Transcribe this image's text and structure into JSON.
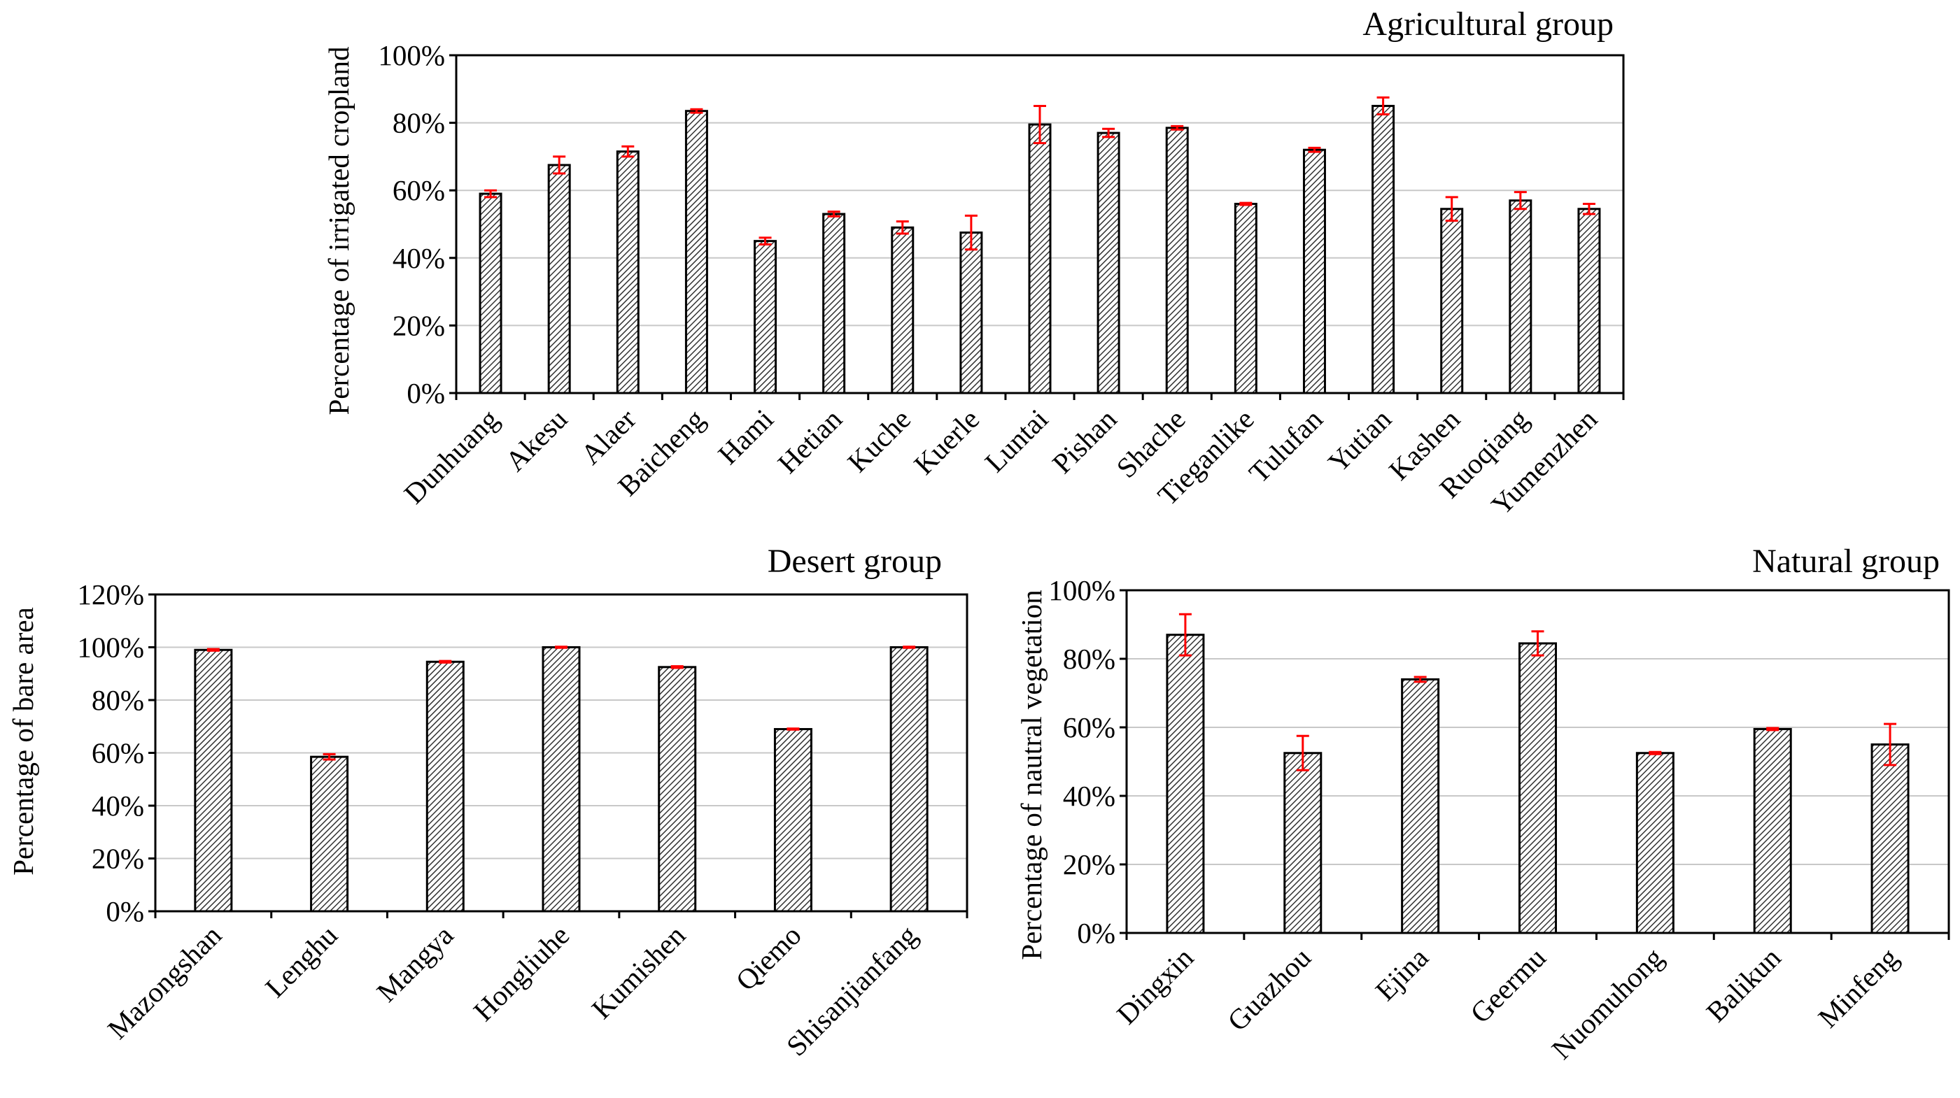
{
  "chart_data": [
    {
      "id": "agri",
      "type": "bar",
      "title": "Agricultural  group",
      "ylabel": "Percentage of irrigated cropland",
      "xlabel": "",
      "ylim": [
        0,
        100
      ],
      "yticks": [
        "0%",
        "20%",
        "40%",
        "60%",
        "80%",
        "100%"
      ],
      "categories": [
        "Dunhuang",
        "Akesu",
        "Alaer",
        "Baicheng",
        "Hami",
        "Hetian",
        "Kuche",
        "Kuerle",
        "Luntai",
        "Pishan",
        "Shache",
        "Tieganlike",
        "Tulufan",
        "Yutian",
        "Kashen",
        "Ruoqiang",
        "Yumenzhen"
      ],
      "values": [
        59,
        67.5,
        71.5,
        83.5,
        45,
        53,
        49,
        47.5,
        79.5,
        77,
        78.5,
        56,
        72,
        85,
        54.5,
        57,
        54.5
      ],
      "errors": [
        1,
        2.5,
        1.5,
        0.5,
        1,
        0.7,
        1.8,
        5,
        5.5,
        1.2,
        0.5,
        0.3,
        0.6,
        2.5,
        3.5,
        2.5,
        1.5
      ],
      "grid": true
    },
    {
      "id": "desert",
      "type": "bar",
      "title": "Desert group",
      "ylabel": "Percentage of bare area",
      "xlabel": "",
      "ylim": [
        0,
        120
      ],
      "yticks": [
        "0%",
        "20%",
        "40%",
        "60%",
        "80%",
        "100%",
        "120%"
      ],
      "categories": [
        "Mazongshan",
        "Lenghu",
        "Mangya",
        "Hongliuhe",
        "Kumishen",
        "Qiemo",
        "Shisanjianfang"
      ],
      "values": [
        99,
        58.5,
        94.5,
        100,
        92.5,
        69,
        100
      ],
      "errors": [
        0.3,
        1,
        0.3,
        0.2,
        0.3,
        0.2,
        0.2
      ],
      "grid": true
    },
    {
      "id": "natural",
      "type": "bar",
      "title": "Natural  group",
      "ylabel": "Percentage of nautral vegetation",
      "xlabel": "",
      "ylim": [
        0,
        100
      ],
      "yticks": [
        "0%",
        "20%",
        "40%",
        "60%",
        "80%",
        "100%"
      ],
      "categories": [
        "Dingxin",
        "Guazhou",
        "Ejina",
        "Geermu",
        "Nuomuhong",
        "Balikun",
        "Minfeng"
      ],
      "values": [
        87,
        52.5,
        74,
        84.5,
        52.5,
        59.5,
        55
      ],
      "errors": [
        6,
        5,
        0.7,
        3.5,
        0.3,
        0.3,
        6
      ],
      "grid": true
    }
  ]
}
